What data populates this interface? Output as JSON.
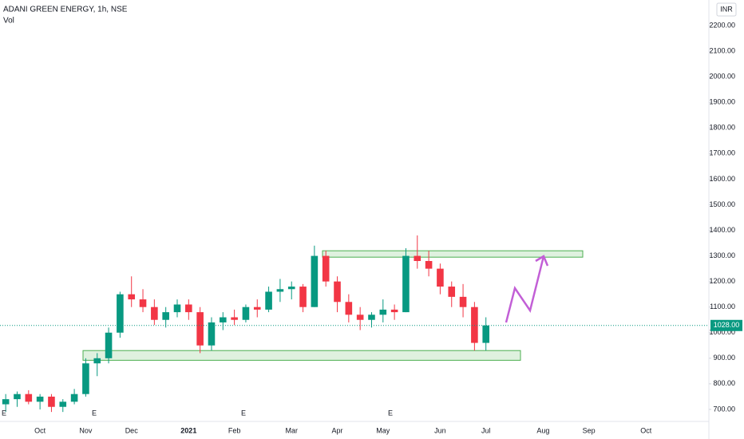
{
  "chart_data": {
    "type": "candlestick",
    "title": "ADANI GREEN ENERGY, 1h, NSE",
    "subtitle": "Vol",
    "currency": "INR",
    "up_color": "#089981",
    "down_color": "#f23645",
    "categories": [
      null,
      null,
      null,
      "Oct",
      null,
      null,
      null,
      "Nov",
      null,
      null,
      null,
      "Dec",
      null,
      null,
      null,
      null,
      "2021",
      null,
      null,
      null,
      "Feb",
      null,
      null,
      null,
      null,
      "Mar",
      null,
      null,
      null,
      "Apr",
      null,
      null,
      null,
      "May",
      null,
      null,
      null,
      null,
      "Jun",
      null,
      null,
      null,
      "Jul",
      null,
      null,
      null,
      null,
      "Aug",
      null,
      null,
      null,
      "Sep",
      null,
      null,
      null,
      null,
      "Oct",
      null,
      null,
      null,
      null,
      null
    ],
    "open": [
      720,
      740,
      760,
      730,
      750,
      710,
      730,
      760,
      880,
      900,
      1000,
      1150,
      1130,
      1100,
      1050,
      1080,
      1110,
      1080,
      950,
      1040,
      1060,
      1050,
      1100,
      1090,
      1160,
      1170,
      1180,
      1100,
      1300,
      1200,
      1120,
      1070,
      1050,
      1070,
      1090,
      1080,
      1300,
      1280,
      1250,
      1180,
      1140,
      1100,
      960,
      null,
      null,
      null,
      null,
      null,
      null,
      null,
      null,
      null,
      null,
      null,
      null,
      null,
      null,
      null,
      null,
      null,
      null,
      null
    ],
    "high": [
      760,
      770,
      775,
      760,
      760,
      740,
      780,
      900,
      920,
      1020,
      1160,
      1220,
      1170,
      1130,
      1100,
      1130,
      1130,
      1100,
      1060,
      1080,
      1090,
      1110,
      1130,
      1180,
      1210,
      1200,
      1190,
      1340,
      1320,
      1220,
      1150,
      1100,
      1080,
      1130,
      1110,
      1330,
      1380,
      1320,
      1270,
      1200,
      1190,
      1120,
      1060,
      null,
      null,
      null,
      null,
      null,
      null,
      null,
      null,
      null,
      null,
      null,
      null,
      null,
      null,
      null,
      null,
      null,
      null,
      null
    ],
    "low": [
      690,
      710,
      720,
      700,
      690,
      690,
      720,
      750,
      830,
      880,
      980,
      1100,
      1080,
      1030,
      1020,
      1060,
      1050,
      920,
      930,
      1010,
      1030,
      1040,
      1060,
      1080,
      1120,
      1130,
      1080,
      1100,
      1180,
      1080,
      1040,
      1010,
      1020,
      1040,
      1050,
      1080,
      1250,
      1220,
      1150,
      1100,
      1060,
      930,
      930,
      null,
      null,
      null,
      null,
      null,
      null,
      null,
      null,
      null,
      null,
      null,
      null,
      null,
      null,
      null,
      null,
      null,
      null,
      null
    ],
    "close": [
      740,
      760,
      730,
      750,
      710,
      730,
      760,
      880,
      900,
      1000,
      1150,
      1130,
      1100,
      1050,
      1080,
      1110,
      1080,
      950,
      1040,
      1060,
      1050,
      1100,
      1090,
      1160,
      1170,
      1180,
      1100,
      1300,
      1200,
      1120,
      1070,
      1050,
      1070,
      1090,
      1080,
      1300,
      1280,
      1250,
      1180,
      1140,
      1100,
      960,
      1028,
      null,
      null,
      null,
      null,
      null,
      null,
      null,
      null,
      null,
      null,
      null,
      null,
      null,
      null,
      null,
      null,
      null,
      null,
      null
    ],
    "ylim": [
      653,
      2300
    ],
    "yticks": [
      {
        "value": 700,
        "label": "700.00"
      },
      {
        "value": 800,
        "label": "800.00"
      },
      {
        "value": 900,
        "label": "900.00"
      },
      {
        "value": 1000,
        "label": "1000.00"
      },
      {
        "value": 1100,
        "label": "1100.00"
      },
      {
        "value": 1200,
        "label": "1200.00"
      },
      {
        "value": 1300,
        "label": "1300.00"
      },
      {
        "value": 1400,
        "label": "1400.00"
      },
      {
        "value": 1500,
        "label": "1500.00"
      },
      {
        "value": 1600,
        "label": "1600.00"
      },
      {
        "value": 1700,
        "label": "1700.00"
      },
      {
        "value": 1800,
        "label": "1800.00"
      },
      {
        "value": 1900,
        "label": "1900.00"
      },
      {
        "value": 2000,
        "label": "2000.00"
      },
      {
        "value": 2100,
        "label": "2100.00"
      },
      {
        "value": 2200,
        "label": "2200.00"
      }
    ],
    "last_price": {
      "value": 1028,
      "label": "1028.00"
    },
    "zones": [
      {
        "low": 892,
        "high": 930
      },
      {
        "low": 1295,
        "high": 1320
      }
    ],
    "events": [
      "E",
      "E",
      "E",
      "E"
    ]
  }
}
